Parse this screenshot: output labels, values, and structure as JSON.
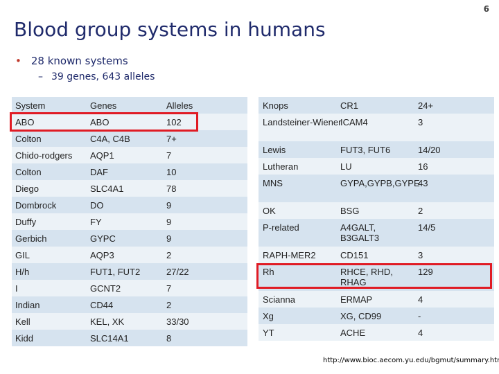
{
  "slide": {
    "page_number": "6",
    "title": "Blood group systems in humans",
    "bullet": "28 known systems",
    "sub_bullet": "39 genes, 643 alleles",
    "source_url": "http://www.bioc.aecom.yu.edu/bgmut/summary.htm"
  },
  "left_table": {
    "headers": [
      "System",
      "Genes",
      "Alleles"
    ],
    "rows": [
      [
        "ABO",
        "ABO",
        "102"
      ],
      [
        "Colton",
        "C4A, C4B",
        "7+"
      ],
      [
        "Chido-rodgers",
        "AQP1",
        "7"
      ],
      [
        "Colton",
        "DAF",
        "10"
      ],
      [
        "Diego",
        "SLC4A1",
        "78"
      ],
      [
        "Dombrock",
        "DO",
        "9"
      ],
      [
        "Duffy",
        "FY",
        "9"
      ],
      [
        "Gerbich",
        "GYPC",
        "9"
      ],
      [
        "GIL",
        "AQP3",
        "2"
      ],
      [
        "H/h",
        "FUT1, FUT2",
        "27/22"
      ],
      [
        "I",
        "GCNT2",
        "7"
      ],
      [
        "Indian",
        "CD44",
        "2"
      ],
      [
        "Kell",
        "KEL, XK",
        "33/30"
      ],
      [
        "Kidd",
        "SLC14A1",
        "8"
      ]
    ]
  },
  "right_table": {
    "rows": [
      [
        "Knops",
        "CR1",
        "24+"
      ],
      [
        "Landsteiner-Wiener",
        "ICAM4",
        "3"
      ],
      [
        "Lewis",
        "FUT3, FUT6",
        "14/20"
      ],
      [
        "Lutheran",
        "LU",
        "16"
      ],
      [
        "MNS",
        "GYPA,GYPB,GYPE",
        "43"
      ],
      [
        "OK",
        "BSG",
        "2"
      ],
      [
        "P-related",
        "A4GALT, B3GALT3",
        "14/5"
      ],
      [
        "RAPH-MER2",
        "CD151",
        "3"
      ],
      [
        "Rh",
        "RHCE, RHD, RHAG",
        "129"
      ],
      [
        "Scianna",
        "ERMAP",
        "4"
      ],
      [
        "Xg",
        "XG, CD99",
        "-"
      ],
      [
        "YT",
        "ACHE",
        "4"
      ]
    ]
  },
  "colors": {
    "title": "#1f2a6b",
    "bullet_dot": "#c0392b",
    "row_dark": "#d6e3ef",
    "row_light": "#ecf2f7",
    "highlight_box": "#e01b24"
  }
}
